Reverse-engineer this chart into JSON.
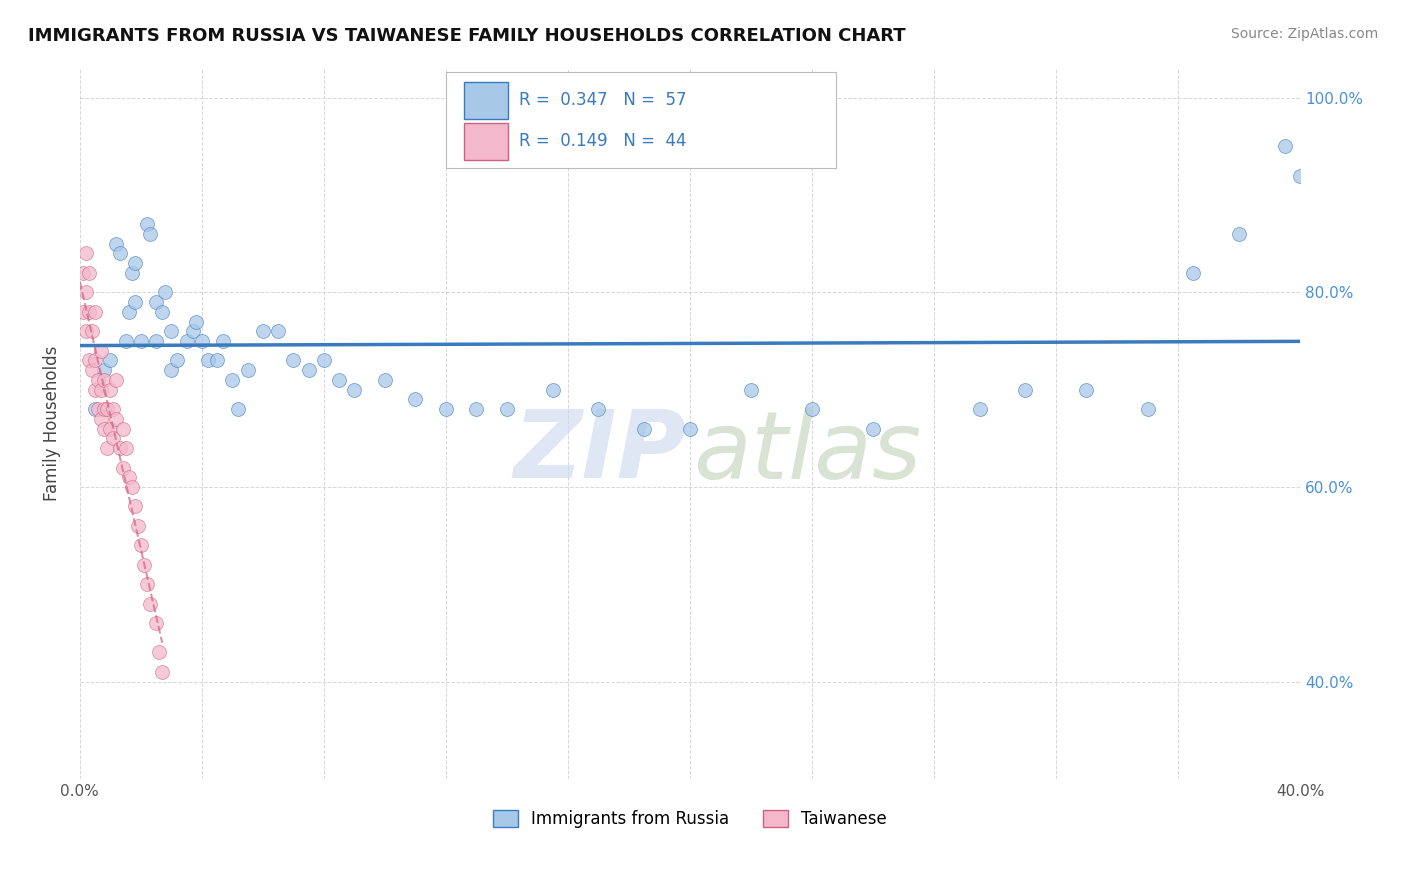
{
  "title": "IMMIGRANTS FROM RUSSIA VS TAIWANESE FAMILY HOUSEHOLDS CORRELATION CHART",
  "source": "Source: ZipAtlas.com",
  "ylabel": "Family Households",
  "xlim": [
    0.0,
    0.4
  ],
  "ylim": [
    0.3,
    1.03
  ],
  "blue_color": "#a8c8e8",
  "pink_color": "#f4b8cc",
  "line_blue": "#3a7abf",
  "line_pink": "#d06080",
  "blue_scatter_x": [
    0.005,
    0.008,
    0.01,
    0.012,
    0.013,
    0.015,
    0.016,
    0.017,
    0.018,
    0.018,
    0.02,
    0.022,
    0.023,
    0.025,
    0.025,
    0.027,
    0.028,
    0.03,
    0.03,
    0.032,
    0.035,
    0.037,
    0.038,
    0.04,
    0.042,
    0.045,
    0.047,
    0.05,
    0.052,
    0.055,
    0.06,
    0.065,
    0.07,
    0.075,
    0.08,
    0.085,
    0.09,
    0.1,
    0.11,
    0.12,
    0.13,
    0.14,
    0.155,
    0.17,
    0.185,
    0.2,
    0.22,
    0.24,
    0.26,
    0.295,
    0.31,
    0.33,
    0.35,
    0.365,
    0.38,
    0.395,
    0.4
  ],
  "blue_scatter_y": [
    0.68,
    0.72,
    0.73,
    0.85,
    0.84,
    0.75,
    0.78,
    0.82,
    0.83,
    0.79,
    0.75,
    0.87,
    0.86,
    0.75,
    0.79,
    0.78,
    0.8,
    0.72,
    0.76,
    0.73,
    0.75,
    0.76,
    0.77,
    0.75,
    0.73,
    0.73,
    0.75,
    0.71,
    0.68,
    0.72,
    0.76,
    0.76,
    0.73,
    0.72,
    0.73,
    0.71,
    0.7,
    0.71,
    0.69,
    0.68,
    0.68,
    0.68,
    0.7,
    0.68,
    0.66,
    0.66,
    0.7,
    0.68,
    0.66,
    0.68,
    0.7,
    0.7,
    0.68,
    0.82,
    0.86,
    0.95,
    0.92
  ],
  "pink_scatter_x": [
    0.001,
    0.001,
    0.002,
    0.002,
    0.002,
    0.003,
    0.003,
    0.003,
    0.004,
    0.004,
    0.005,
    0.005,
    0.005,
    0.006,
    0.006,
    0.007,
    0.007,
    0.007,
    0.008,
    0.008,
    0.008,
    0.009,
    0.009,
    0.01,
    0.01,
    0.011,
    0.011,
    0.012,
    0.012,
    0.013,
    0.014,
    0.014,
    0.015,
    0.016,
    0.017,
    0.018,
    0.019,
    0.02,
    0.021,
    0.022,
    0.023,
    0.025,
    0.026,
    0.027
  ],
  "pink_scatter_y": [
    0.78,
    0.82,
    0.76,
    0.8,
    0.84,
    0.73,
    0.78,
    0.82,
    0.72,
    0.76,
    0.7,
    0.73,
    0.78,
    0.68,
    0.71,
    0.67,
    0.7,
    0.74,
    0.68,
    0.71,
    0.66,
    0.68,
    0.64,
    0.66,
    0.7,
    0.65,
    0.68,
    0.67,
    0.71,
    0.64,
    0.62,
    0.66,
    0.64,
    0.61,
    0.6,
    0.58,
    0.56,
    0.54,
    0.52,
    0.5,
    0.48,
    0.46,
    0.43,
    0.41
  ],
  "legend_items": [
    "Immigrants from Russia",
    "Taiwanese"
  ],
  "r1": "0.347",
  "n1": "57",
  "r2": "0.149",
  "n2": "44"
}
